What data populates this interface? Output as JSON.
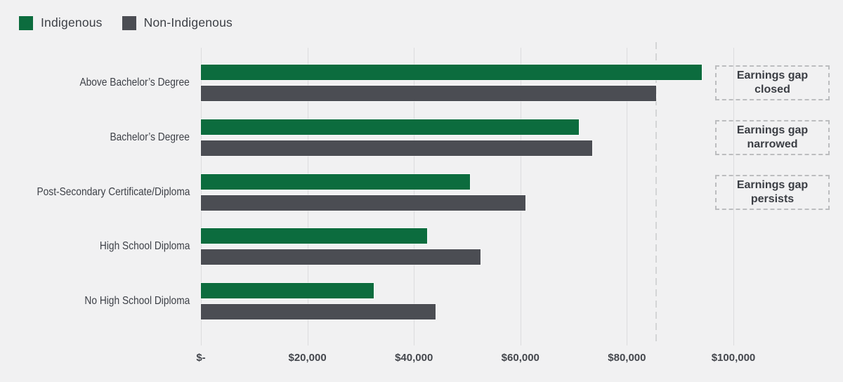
{
  "legend": {
    "items_note": "legend labels bound from chart_data.series names"
  },
  "chart_data": {
    "type": "bar",
    "orientation": "horizontal",
    "title": "",
    "xlabel": "",
    "ylabel": "",
    "categories": [
      "Above Bachelor’s Degree",
      "Bachelor’s Degree",
      "Post-Secondary Certificate/Diploma",
      "High School Diploma",
      "No High School Diploma"
    ],
    "series": [
      {
        "name": "Indigenous",
        "color": "#0c6c3e",
        "values": [
          94000,
          71000,
          50500,
          42500,
          32500
        ]
      },
      {
        "name": "Non-Indigenous",
        "color": "#4b4d53",
        "values": [
          85500,
          73500,
          61000,
          52500,
          44000
        ]
      }
    ],
    "x_axis": {
      "range": [
        0,
        100000
      ],
      "ticks": [
        {
          "label": "$-",
          "value": 0
        },
        {
          "label": "$20,000",
          "value": 20000
        },
        {
          "label": "$40,000",
          "value": 40000
        },
        {
          "label": "$60,000",
          "value": 60000
        },
        {
          "label": "$80,000",
          "value": 80000
        },
        {
          "label": "$100,000",
          "value": 100000
        }
      ]
    },
    "grid": "vertical",
    "legend_position": "top-left",
    "reference_line": {
      "value": 85500,
      "style": "dashed",
      "color": "#d4d5d6"
    },
    "annotations": [
      {
        "label": "Earnings gap closed",
        "row": 0
      },
      {
        "label": "Earnings gap narrowed",
        "row": 1
      },
      {
        "label": "Earnings gap persists",
        "row": 2
      }
    ]
  },
  "colors": {
    "background": "#f1f1f2",
    "gridline": "#dcdcde",
    "indigenous": "#0c6c3e",
    "non_indigenous": "#4b4d53",
    "text": "#3d4047",
    "annotation_border": "#bcbdbf"
  }
}
